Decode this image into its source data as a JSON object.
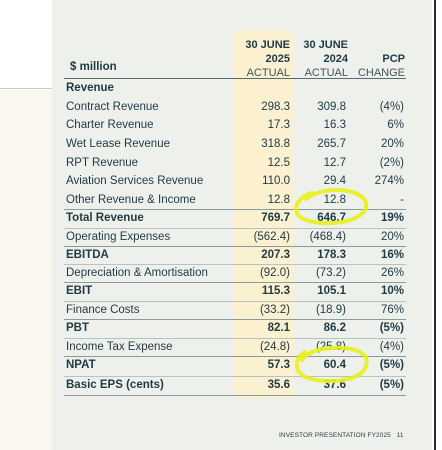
{
  "header": {
    "unit_label": "$ million",
    "col1": {
      "line1": "30 JUNE",
      "line2": "2025",
      "line3": "ACTUAL"
    },
    "col2": {
      "line1": "30 JUNE",
      "line2": "2024",
      "line3": "ACTUAL"
    },
    "col3": {
      "line1": "PCP",
      "line2": "CHANGE"
    }
  },
  "rows": [
    {
      "label": "Revenue",
      "fy25": "",
      "fy24": "",
      "change": "",
      "style": "section"
    },
    {
      "label": "Contract Revenue",
      "fy25": "298.3",
      "fy24": "309.8",
      "change": "(4%)",
      "style": "normal"
    },
    {
      "label": "Charter Revenue",
      "fy25": "17.3",
      "fy24": "16.3",
      "change": "6%",
      "style": "normal"
    },
    {
      "label": "Wet Lease Revenue",
      "fy25": "318.8",
      "fy24": "265.7",
      "change": "20%",
      "style": "normal"
    },
    {
      "label": "RPT Revenue",
      "fy25": "12.5",
      "fy24": "12.7",
      "change": "(2%)",
      "style": "normal"
    },
    {
      "label": "Aviation Services Revenue",
      "fy25": "110.0",
      "fy24": "29.4",
      "change": "274%",
      "style": "normal"
    },
    {
      "label": "Other Revenue & Income",
      "fy25": "12.8",
      "fy24": "12.8",
      "change": "-",
      "style": "normal"
    },
    {
      "label": "Total Revenue",
      "fy25": "769.7",
      "fy24": "646.7",
      "change": "19%",
      "style": "bold"
    },
    {
      "label": "Operating Expenses",
      "fy25": "(562.4)",
      "fy24": "(468.4)",
      "change": "20%",
      "style": "normal"
    },
    {
      "label": "EBITDA",
      "fy25": "207.3",
      "fy24": "178.3",
      "change": "16%",
      "style": "bold"
    },
    {
      "label": "Depreciation & Amortisation",
      "fy25": "(92.0)",
      "fy24": "(73.2)",
      "change": "26%",
      "style": "normal"
    },
    {
      "label": "EBIT",
      "fy25": "115.3",
      "fy24": "105.1",
      "change": "10%",
      "style": "bold"
    },
    {
      "label": "Finance Costs",
      "fy25": "(33.2)",
      "fy24": "(18.9)",
      "change": "76%",
      "style": "normal"
    },
    {
      "label": "PBT",
      "fy25": "82.1",
      "fy24": "86.2",
      "change": "(5%)",
      "style": "bold"
    },
    {
      "label": "Income Tax Expense",
      "fy25": "(24.8)",
      "fy24": "(25.8)",
      "change": "(4%)",
      "style": "normal"
    },
    {
      "label": "NPAT",
      "fy25": "57.3",
      "fy24": "60.4",
      "change": "(5%)",
      "style": "bold"
    },
    {
      "label": "Basic EPS (cents)",
      "fy25": "35.6",
      "fy24": "37.6",
      "change": "(5%)",
      "style": "bold"
    }
  ],
  "footer": {
    "text": "INVESTOR PRESENTATION FY2025",
    "page": "11"
  },
  "colors": {
    "panel": "#eef0ec",
    "highlight_column": "#fbf0cf",
    "annotation": "#e8ef1a",
    "text": "#1f3a44"
  }
}
